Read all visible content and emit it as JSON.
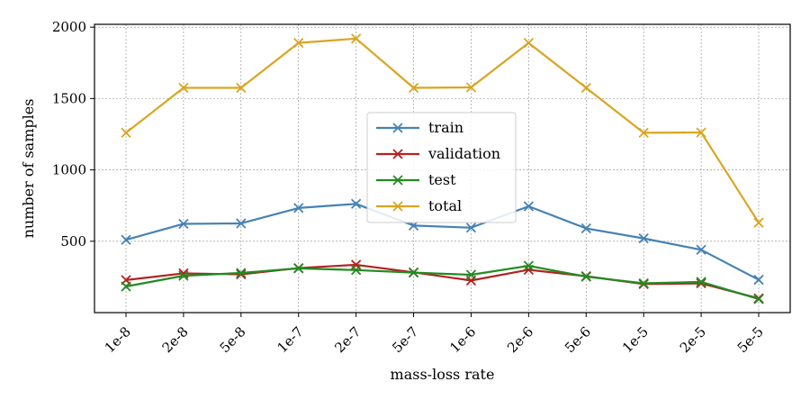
{
  "chart_data": {
    "type": "line",
    "title": "",
    "xlabel": "mass-loss rate",
    "ylabel": "number of samples",
    "categories": [
      "1e-8",
      "2e-8",
      "5e-8",
      "1e-7",
      "2e-7",
      "5e-7",
      "1e-6",
      "2e-6",
      "5e-6",
      "1e-5",
      "2e-5",
      "5e-5"
    ],
    "ylim": [
      0,
      2020
    ],
    "yticks": [
      500,
      1000,
      1500,
      2000
    ],
    "grid": true,
    "legend_position": "center",
    "marker": "x",
    "series": [
      {
        "name": "train",
        "color": "#4682b4",
        "values": [
          510,
          622,
          625,
          733,
          762,
          610,
          595,
          745,
          590,
          520,
          440,
          230
        ]
      },
      {
        "name": "validation",
        "color": "#b22222",
        "values": [
          228,
          275,
          268,
          312,
          335,
          282,
          225,
          300,
          255,
          200,
          205,
          100
        ]
      },
      {
        "name": "test",
        "color": "#228b22",
        "values": [
          183,
          258,
          278,
          310,
          298,
          280,
          265,
          328,
          252,
          205,
          215,
          95
        ]
      },
      {
        "name": "total",
        "color": "#daa520",
        "values": [
          1260,
          1575,
          1575,
          1890,
          1920,
          1575,
          1578,
          1890,
          1575,
          1260,
          1262,
          630
        ]
      }
    ]
  }
}
